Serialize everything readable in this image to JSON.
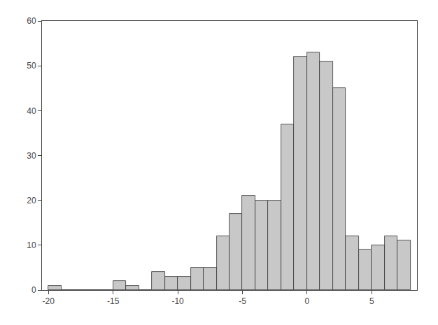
{
  "chart_data": {
    "type": "histogram",
    "bins": [
      -20,
      -19,
      -18,
      -17,
      -16,
      -15,
      -14,
      -13,
      -12,
      -11,
      -10,
      -9,
      -8,
      -7,
      -6,
      -5,
      -4,
      -3,
      -2,
      -1,
      0,
      1,
      2,
      3,
      4,
      5,
      6,
      7,
      8
    ],
    "values": [
      1,
      0,
      0,
      0,
      0,
      2,
      1,
      0,
      4,
      3,
      3,
      5,
      5,
      12,
      17,
      21,
      20,
      20,
      37,
      52,
      53,
      51,
      45,
      12,
      9,
      10,
      12,
      11
    ],
    "color": "#c8c8c8",
    "xlim": [
      -20.5,
      8.5
    ],
    "ylim": [
      0,
      60
    ],
    "xticks": [
      -20,
      -15,
      -10,
      -5,
      0,
      5
    ],
    "yticks": [
      0,
      10,
      20,
      30,
      40,
      50,
      60
    ],
    "grid": false
  }
}
